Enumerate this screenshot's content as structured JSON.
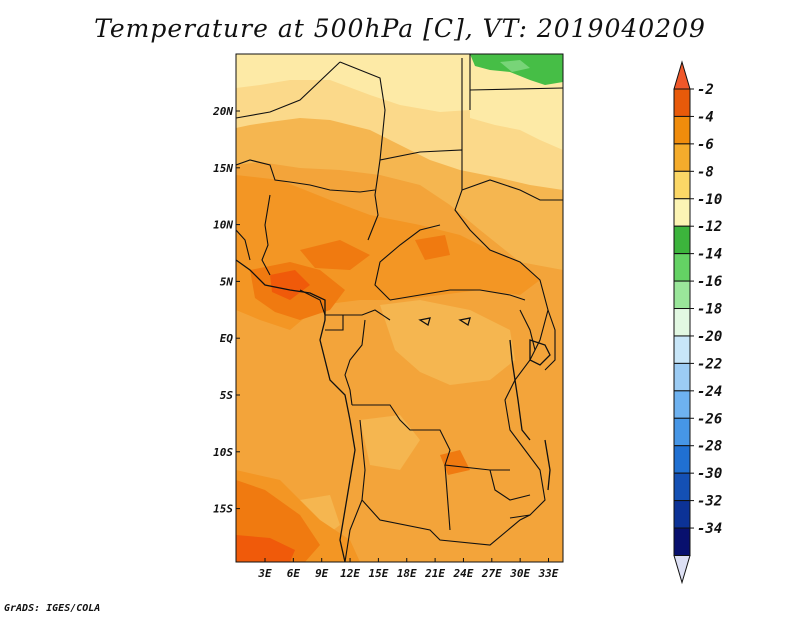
{
  "title": "Temperature at 500hPa [C], VT: 2019040209",
  "footer": "GrADS: IGES/COLA",
  "lat_labels": [
    "20N",
    "15N",
    "10N",
    "5N",
    "EQ",
    "5S",
    "10S",
    "15S"
  ],
  "lon_labels": [
    "3E",
    "6E",
    "9E",
    "12E",
    "15E",
    "18E",
    "21E",
    "24E",
    "27E",
    "30E",
    "33E"
  ],
  "colorbar": {
    "labels": [
      "-2",
      "-4",
      "-6",
      "-8",
      "-10",
      "-12",
      "-14",
      "-16",
      "-18",
      "-20",
      "-22",
      "-24",
      "-26",
      "-28",
      "-30",
      "-32",
      "-34"
    ],
    "colors": [
      "#f0582a",
      "#e85a0a",
      "#f08c0c",
      "#f5ac2c",
      "#fbd766",
      "#fcf4b4",
      "#3cb43c",
      "#64d264",
      "#9ae69a",
      "#e2f8e2",
      "#c8e6f8",
      "#9cccf4",
      "#6eb2f0",
      "#4696e6",
      "#2070d2",
      "#1450b4",
      "#0c3296",
      "#08106e",
      "#dde0f4"
    ]
  },
  "map_colors": {
    "base": "#f3a43a",
    "north": "#f5b650",
    "sahara_light": "#fbd98a",
    "sahara_pale": "#fdeaa6",
    "warm": "#f39624",
    "hot": "#f07a10",
    "hotter": "#f05a0a",
    "green": "#46be46",
    "green_light": "#78d478"
  }
}
